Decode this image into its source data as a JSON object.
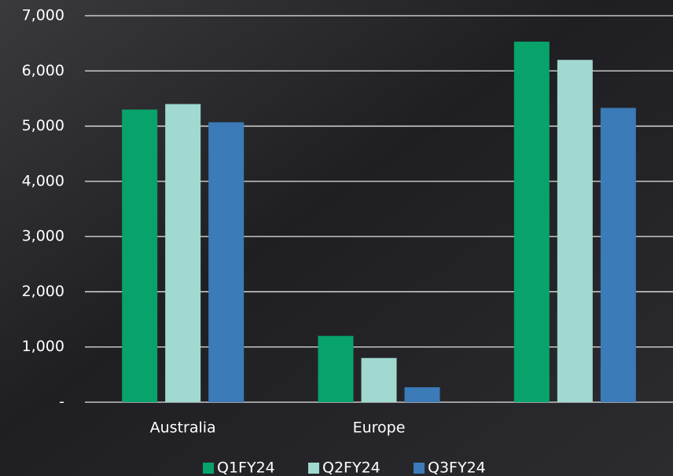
{
  "chart_data": {
    "type": "bar",
    "categories": [
      "Australia",
      "Europe",
      null
    ],
    "series": [
      {
        "name": "Q1FY24",
        "color": "#07a36a",
        "values": [
          5300,
          1200,
          6530
        ]
      },
      {
        "name": "Q2FY24",
        "color": "#9fd9cf",
        "values": [
          5400,
          800,
          6200
        ]
      },
      {
        "name": "Q3FY24",
        "color": "#3a7bb8",
        "values": [
          5070,
          270,
          5330
        ]
      }
    ],
    "ylim": [
      0,
      7000
    ],
    "yticks": [
      {
        "value": 0,
        "label": "-"
      },
      {
        "value": 1000,
        "label": "1,000"
      },
      {
        "value": 2000,
        "label": "2,000"
      },
      {
        "value": 3000,
        "label": "3,000"
      },
      {
        "value": 4000,
        "label": "4,000"
      },
      {
        "value": 5000,
        "label": "5,000"
      },
      {
        "value": 6000,
        "label": "6,000"
      },
      {
        "value": 7000,
        "label": "7,000"
      }
    ],
    "grid": true,
    "legend": "bottom"
  }
}
